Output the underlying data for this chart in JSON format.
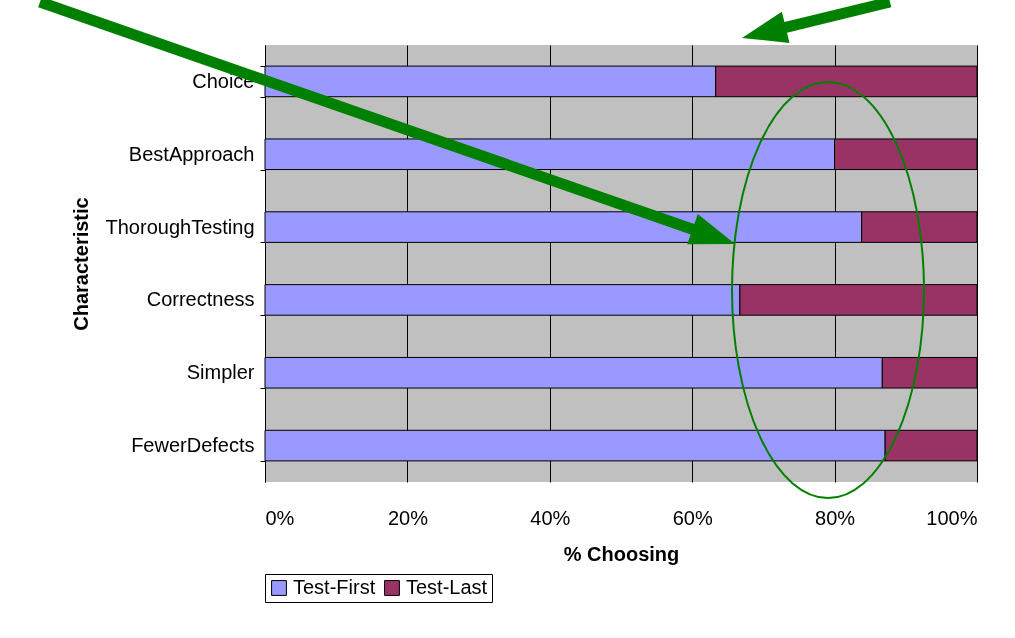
{
  "chart_data": {
    "type": "bar",
    "orientation": "horizontal",
    "stacked": true,
    "xlabel": "% Choosing",
    "ylabel": "Characteristic",
    "categories": [
      "Choice",
      "BestApproach",
      "ThoroughTesting",
      "Correctness",
      "Simpler",
      "FewerDefects"
    ],
    "series": [
      {
        "name": "Test-First",
        "color": "#9999ff",
        "values": [
          63.3,
          80,
          83.8,
          66.7,
          86.7,
          87.1
        ]
      },
      {
        "name": "Test-Last",
        "color": "#993366",
        "values": [
          36.7,
          20,
          16.2,
          33.3,
          13.3,
          12.9
        ]
      }
    ],
    "xlim": [
      0,
      100
    ],
    "xticks": [
      {
        "value": 0,
        "label": "0%"
      },
      {
        "value": 20,
        "label": "20%"
      },
      {
        "value": 40,
        "label": "40%"
      },
      {
        "value": 60,
        "label": "60%"
      },
      {
        "value": 80,
        "label": "80%"
      },
      {
        "value": 100,
        "label": "100%"
      }
    ],
    "grid": "x",
    "legend": "bottom"
  }
}
